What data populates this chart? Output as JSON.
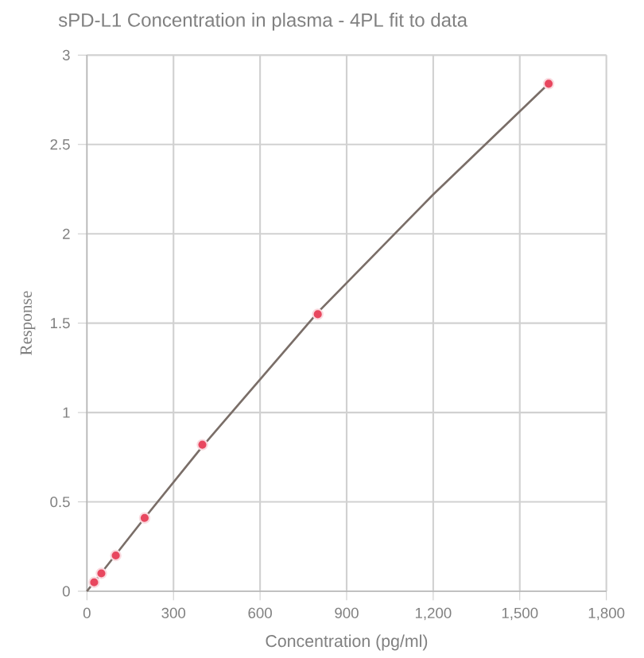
{
  "chart_data": {
    "type": "scatter",
    "title": "sPD-L1 Concentration in plasma - 4PL fit to data",
    "xlabel": "Concentration (pg/ml)",
    "ylabel": "Response",
    "series": [
      {
        "type": "line",
        "color": "#7a6e68",
        "marker": "none",
        "x": [
          0,
          200,
          400,
          800,
          1200,
          1600
        ],
        "values": [
          0.0,
          0.41,
          0.81,
          1.56,
          2.22,
          2.84
        ]
      },
      {
        "color": "#e8475f",
        "marker": "circle",
        "x": [
          25,
          50,
          100,
          200,
          400,
          800,
          1600
        ],
        "values": [
          0.05,
          0.1,
          0.2,
          0.41,
          0.82,
          1.55,
          2.84
        ]
      }
    ],
    "xlim": [
      0,
      1800
    ],
    "ylim": [
      0,
      3
    ],
    "xticks": [
      0,
      300,
      600,
      900,
      {
        "value": 1200,
        "label": "1,200"
      },
      {
        "value": 1500,
        "label": "1,500"
      },
      {
        "value": 1800,
        "label": "1,800"
      }
    ],
    "yticks": [
      0,
      0.5,
      1,
      1.5,
      2,
      2.5,
      3
    ],
    "grid": true
  }
}
